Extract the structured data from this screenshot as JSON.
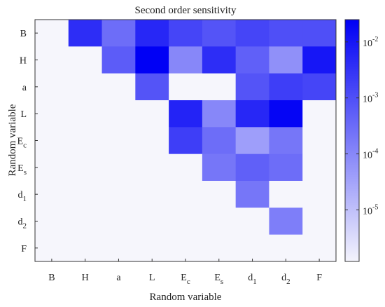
{
  "chart_data": {
    "type": "heatmap",
    "title": "Second order sensitivity",
    "xlabel": "Random variable",
    "ylabel": "Random variable",
    "x_categories": [
      {
        "main": "B",
        "sub": ""
      },
      {
        "main": "H",
        "sub": ""
      },
      {
        "main": "a",
        "sub": ""
      },
      {
        "main": "L",
        "sub": ""
      },
      {
        "main": "E",
        "sub": "c"
      },
      {
        "main": "E",
        "sub": "s"
      },
      {
        "main": "d",
        "sub": "1"
      },
      {
        "main": "d",
        "sub": "2"
      },
      {
        "main": "F",
        "sub": ""
      }
    ],
    "y_categories": [
      {
        "main": "B",
        "sub": ""
      },
      {
        "main": "H",
        "sub": ""
      },
      {
        "main": "a",
        "sub": ""
      },
      {
        "main": "L",
        "sub": ""
      },
      {
        "main": "E",
        "sub": "c"
      },
      {
        "main": "E",
        "sub": "s"
      },
      {
        "main": "d",
        "sub": "1"
      },
      {
        "main": "d",
        "sub": "2"
      },
      {
        "main": "F",
        "sub": ""
      }
    ],
    "values": [
      [
        null,
        0.004,
        0.0003,
        0.005,
        0.0015,
        0.0008,
        0.0015,
        0.001,
        0.001
      ],
      [
        null,
        null,
        0.0006,
        0.025,
        0.0001,
        0.004,
        0.0005,
        7e-05,
        0.01
      ],
      [
        null,
        null,
        null,
        0.0008,
        null,
        null,
        0.0008,
        0.002,
        0.0015
      ],
      [
        null,
        null,
        null,
        null,
        0.006,
        0.0001,
        0.005,
        0.02,
        null
      ],
      [
        null,
        null,
        null,
        null,
        0.002,
        0.0003,
        4e-05,
        0.0002,
        null
      ],
      [
        null,
        null,
        null,
        null,
        null,
        0.0002,
        0.0005,
        0.0003,
        null
      ],
      [
        null,
        null,
        null,
        null,
        null,
        null,
        0.0002,
        null,
        null
      ],
      [
        null,
        null,
        null,
        null,
        null,
        null,
        null,
        0.00015,
        null
      ],
      [
        null,
        null,
        null,
        null,
        null,
        null,
        null,
        null,
        null
      ]
    ],
    "colorbar": {
      "scale": "log",
      "min": 1.2e-06,
      "max": 0.025,
      "ticks": [
        {
          "value": 1e-05,
          "base": "10",
          "exp": "-5"
        },
        {
          "value": 0.0001,
          "base": "10",
          "exp": "-4"
        },
        {
          "value": 0.001,
          "base": "10",
          "exp": "-3"
        },
        {
          "value": 0.01,
          "base": "10",
          "exp": "-2"
        }
      ],
      "color_low": "#f4f4fc",
      "color_high": "#0000f5"
    },
    "empty_color": "#f6f6fc",
    "grid": false
  }
}
